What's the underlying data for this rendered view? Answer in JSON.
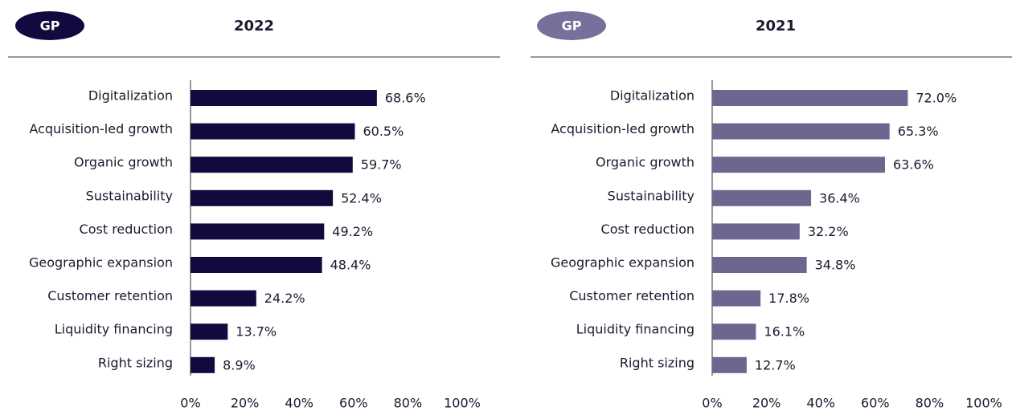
{
  "chart_data": [
    {
      "type": "bar",
      "orientation": "horizontal",
      "badge": "GP",
      "badge_color": "#100a3f",
      "title": "2022",
      "color": "#100a3f",
      "categories": [
        "Digitalization",
        "Acquisition-led growth",
        "Organic growth",
        "Sustainability",
        "Cost reduction",
        "Geographic expansion",
        "Customer retention",
        "Liquidity financing",
        "Right sizing"
      ],
      "values": [
        68.6,
        60.5,
        59.7,
        52.4,
        49.2,
        48.4,
        24.2,
        13.7,
        8.9
      ],
      "value_labels": [
        "68.6%",
        "60.5%",
        "59.7%",
        "52.4%",
        "49.2%",
        "48.4%",
        "24.2%",
        "13.7%",
        "8.9%"
      ],
      "xlim": [
        0,
        100
      ],
      "xticks": [
        {
          "value": 0,
          "label": "0%"
        },
        {
          "value": 20,
          "label": "20%"
        },
        {
          "value": 40,
          "label": "40%"
        },
        {
          "value": 60,
          "label": "60%"
        },
        {
          "value": 80,
          "label": "80%"
        },
        {
          "value": 100,
          "label": "100%"
        }
      ]
    },
    {
      "type": "bar",
      "orientation": "horizontal",
      "badge": "GP",
      "badge_color": "#77709b",
      "title": "2021",
      "color": "#6f6690",
      "categories": [
        "Digitalization",
        "Acquisition-led growth",
        "Organic growth",
        "Sustainability",
        "Cost reduction",
        "Geographic expansion",
        "Customer retention",
        "Liquidity financing",
        "Right sizing"
      ],
      "values": [
        72.0,
        65.3,
        63.6,
        36.4,
        32.2,
        34.8,
        17.8,
        16.1,
        12.7
      ],
      "value_labels": [
        "72.0%",
        "65.3%",
        "63.6%",
        "36.4%",
        "32.2%",
        "34.8%",
        "17.8%",
        "16.1%",
        "12.7%"
      ],
      "xlim": [
        0,
        100
      ],
      "xticks": [
        {
          "value": 0,
          "label": "0%"
        },
        {
          "value": 20,
          "label": "20%"
        },
        {
          "value": 40,
          "label": "40%"
        },
        {
          "value": 60,
          "label": "60%"
        },
        {
          "value": 80,
          "label": "80%"
        },
        {
          "value": 100,
          "label": "100%"
        }
      ]
    }
  ]
}
